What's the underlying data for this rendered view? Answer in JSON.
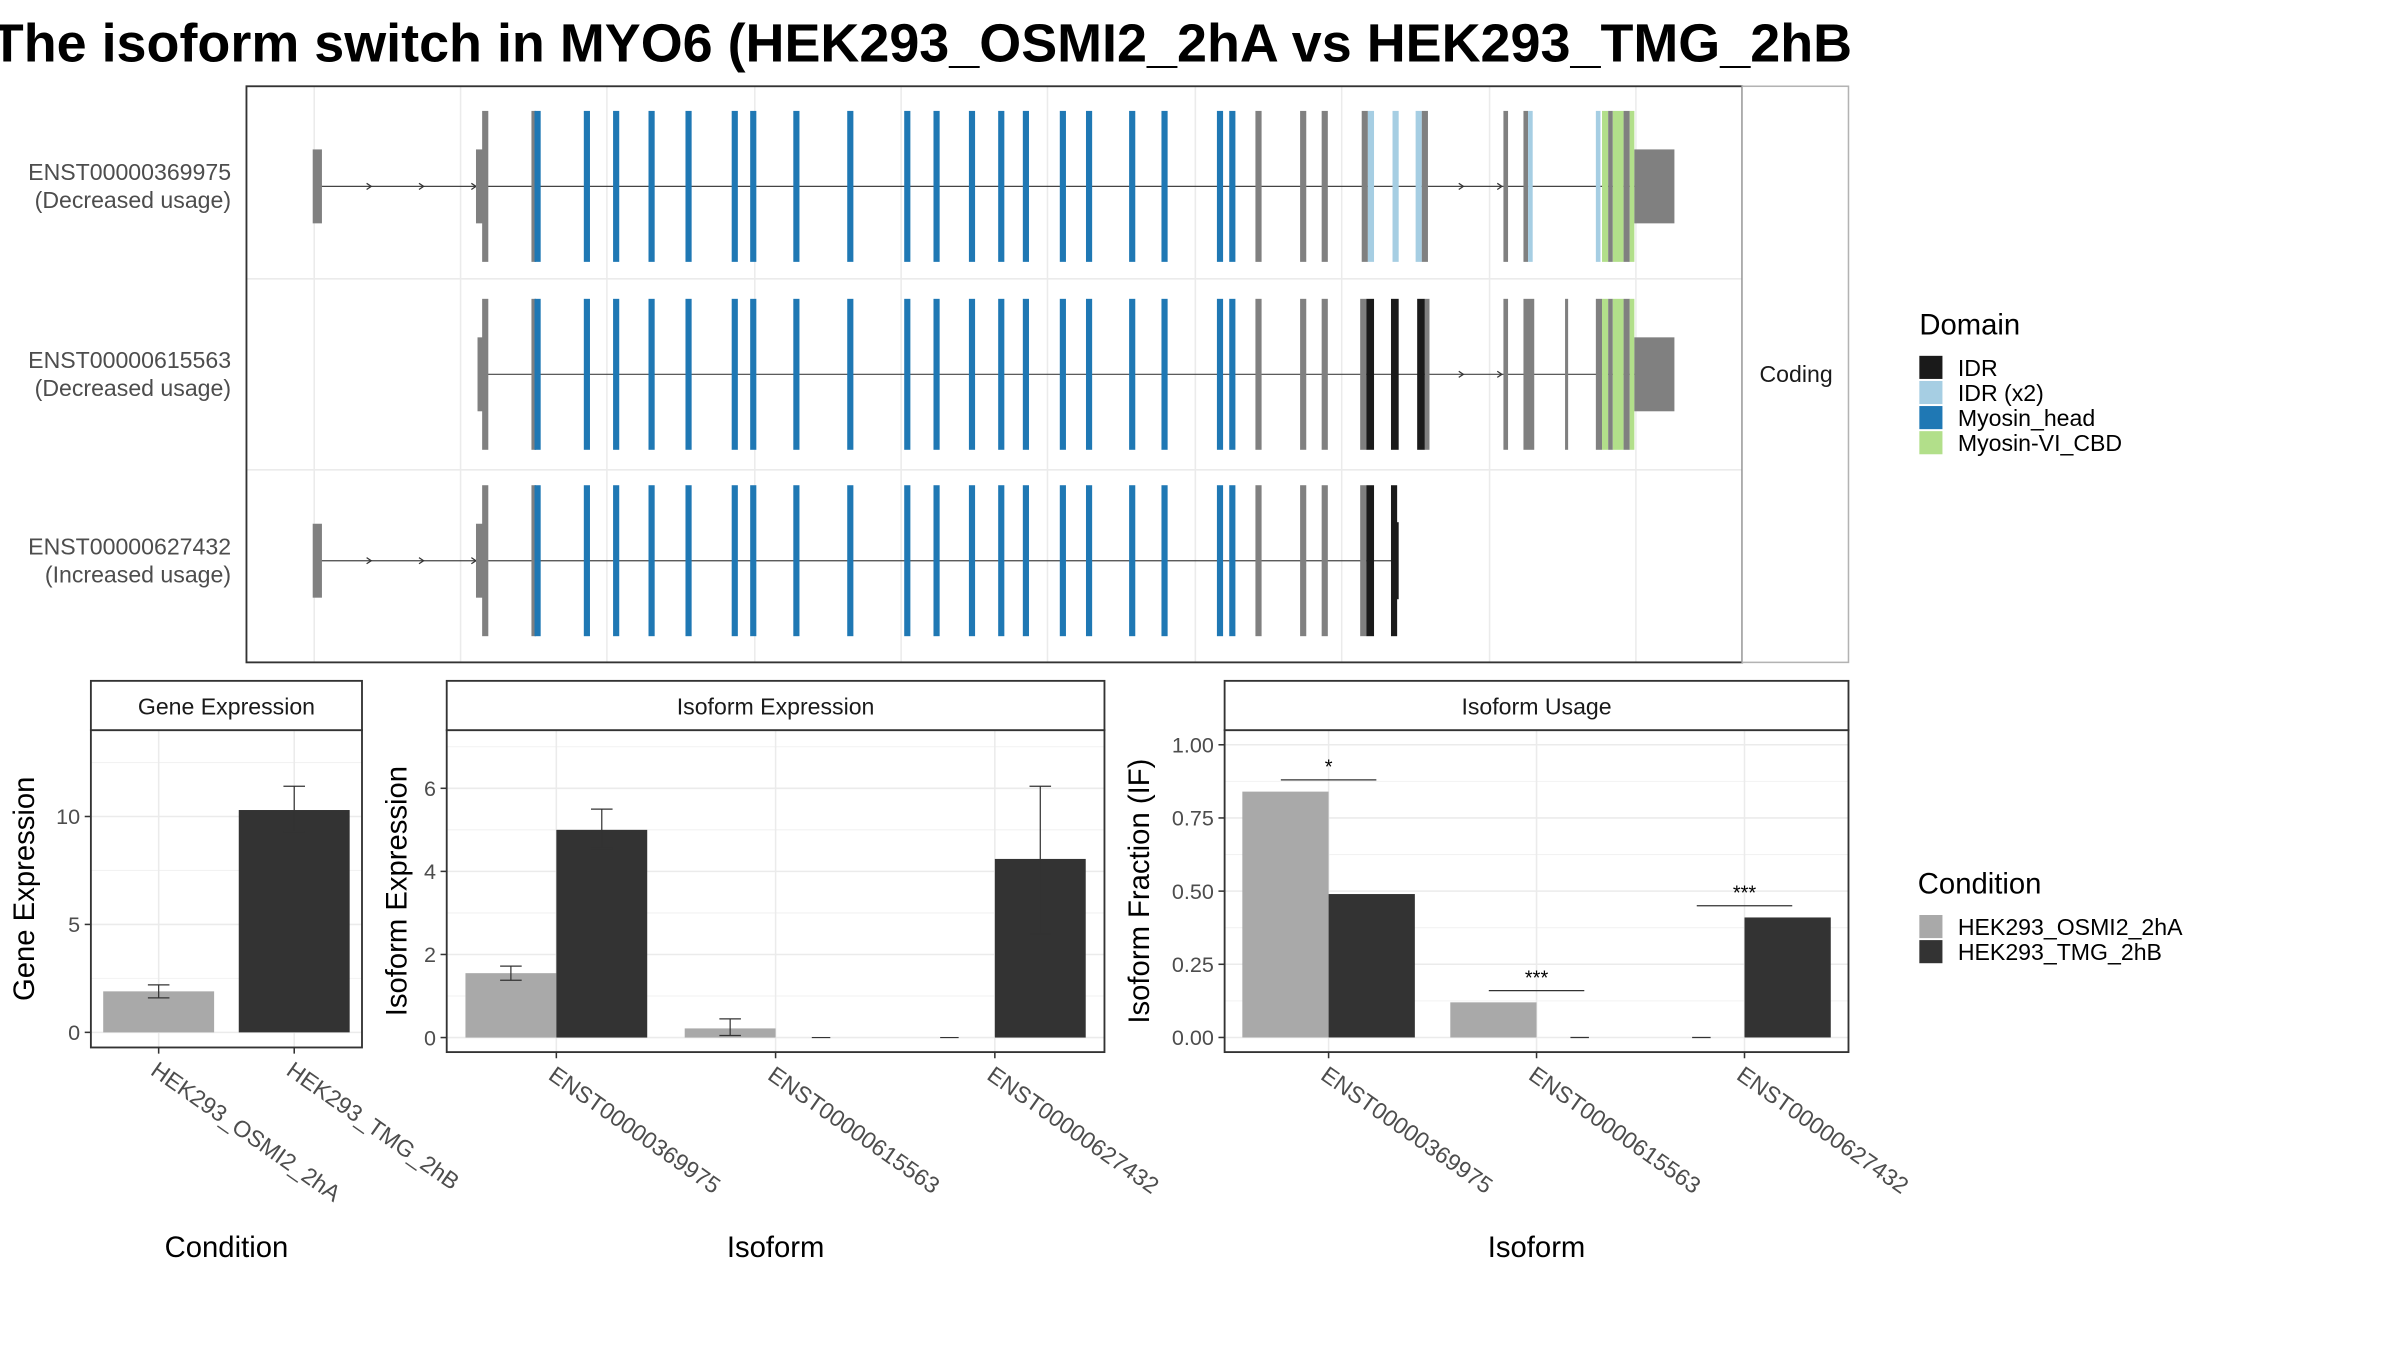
{
  "title": "The isoform switch in MYO6 (HEK293_OSMI2_2hA vs HEK293_TMG_2hB",
  "colors": {
    "IDR": "#1a1a1a",
    "IDR (x2)": "#a6cee3",
    "Myosin_head": "#1f78b4",
    "Myosin-VI_CBD": "#b2df8a",
    "noncoding": "#808080",
    "cond_A": "#a9a9a9",
    "cond_B": "#333333"
  },
  "chart_data": [
    {
      "type": "gene-structure",
      "strip_label": "Coding",
      "transcripts": [
        {
          "id": "ENST00000369975",
          "label": "ENST00000369975",
          "status": "(Decreased usage)"
        },
        {
          "id": "ENST00000615563",
          "label": "ENST00000615563",
          "status": "(Decreased usage)"
        },
        {
          "id": "ENST00000627432",
          "label": "ENST00000627432",
          "status": "(Increased usage)"
        }
      ],
      "legend": {
        "title": "Domain",
        "items": [
          "IDR",
          "IDR (x2)",
          "Myosin_head",
          "Myosin-VI_CBD"
        ]
      }
    },
    {
      "type": "bar",
      "strip": "Gene Expression",
      "ylabel": "Gene Expression",
      "xlabel": "Condition",
      "categories": [
        "HEK293_OSMI2_2hA",
        "HEK293_TMG_2hB"
      ],
      "values": [
        1.9,
        10.3
      ],
      "errors": [
        [
          1.6,
          2.2
        ],
        [
          9.3,
          11.4
        ]
      ],
      "ylim": [
        -0.7,
        14
      ],
      "yticks": [
        0,
        5,
        10
      ]
    },
    {
      "type": "bar",
      "strip": "Isoform Expression",
      "ylabel": "Isoform Expression",
      "xlabel": "Isoform",
      "categories": [
        "ENST00000369975",
        "ENST00000615563",
        "ENST00000627432"
      ],
      "series": [
        {
          "name": "HEK293_OSMI2_2hA",
          "values": [
            1.55,
            0.22,
            0.0
          ],
          "errors": [
            [
              1.38,
              1.72
            ],
            [
              0.05,
              0.45
            ],
            [
              0,
              0
            ]
          ]
        },
        {
          "name": "HEK293_TMG_2hB",
          "values": [
            5.0,
            0.0,
            4.3
          ],
          "errors": [
            [
              4.55,
              5.5
            ],
            [
              0,
              0
            ],
            [
              2.5,
              6.05
            ]
          ]
        }
      ],
      "ylim": [
        -0.35,
        7.4
      ],
      "yticks": [
        0,
        2,
        4,
        6
      ]
    },
    {
      "type": "bar",
      "strip": "Isoform Usage",
      "ylabel": "Isoform Fraction (IF)",
      "xlabel": "Isoform",
      "categories": [
        "ENST00000369975",
        "ENST00000615563",
        "ENST00000627432"
      ],
      "series": [
        {
          "name": "HEK293_OSMI2_2hA",
          "values": [
            0.84,
            0.12,
            0.0
          ]
        },
        {
          "name": "HEK293_TMG_2hB",
          "values": [
            0.49,
            0.0,
            0.41
          ]
        }
      ],
      "significance": [
        "*",
        "***",
        "***"
      ],
      "ylim": [
        -0.05,
        1.05
      ],
      "yticks": [
        0.0,
        0.25,
        0.5,
        0.75,
        1.0
      ],
      "ytick_labels": [
        "0.00",
        "0.25",
        "0.50",
        "0.75",
        "1.00"
      ]
    }
  ],
  "condition_legend": {
    "title": "Condition",
    "items": [
      "HEK293_OSMI2_2hA",
      "HEK293_TMG_2hB"
    ]
  }
}
